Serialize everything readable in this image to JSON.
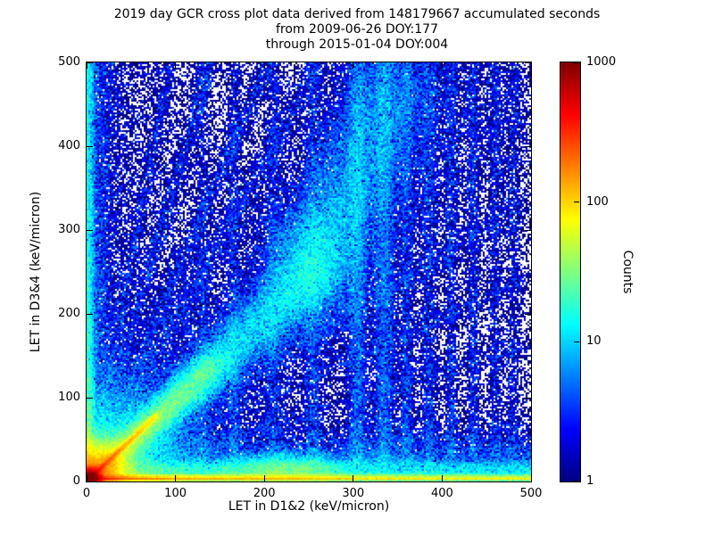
{
  "chart_data": {
    "type": "heatmap",
    "title_lines": [
      "2019 day GCR cross plot data derived from 148179667 accumulated seconds",
      "from 2009-06-26 DOY:177",
      "through 2015-01-04 DOY:004"
    ],
    "xlabel": "LET in D1&2 (keV/micron)",
    "ylabel": "LET in D3&4 (keV/micron)",
    "xlim": [
      0,
      500
    ],
    "ylim": [
      0,
      500
    ],
    "x_ticks": [
      0,
      100,
      200,
      300,
      400,
      500
    ],
    "y_ticks": [
      0,
      100,
      200,
      300,
      400,
      500
    ],
    "grid": false,
    "colors": {
      "background": "#ffffff",
      "frame": "#000000",
      "single_count_point": "#000080"
    },
    "colorbar": {
      "label": "Counts",
      "scale": "log",
      "min": 1,
      "max": 1000,
      "ticks": [
        1,
        10,
        100,
        1000
      ],
      "colormap": "jet",
      "jet_stops": [
        "#000080 0%",
        "#0000ff 12.5%",
        "#00ffff 37.5%",
        "#7fff7f 50%",
        "#ffff00 62.5%",
        "#ff0000 87.5%",
        "#7f0000 100%"
      ]
    },
    "density_features": [
      {
        "name": "origin-core",
        "kind": "blob",
        "x": 4,
        "y": 4,
        "sx": 6,
        "sy": 6,
        "samples": 60000
      },
      {
        "name": "origin-glow",
        "kind": "blob",
        "x": 12,
        "y": 12,
        "sx": 18,
        "sy": 18,
        "samples": 50000
      },
      {
        "name": "origin-halo",
        "kind": "blob",
        "x": 25,
        "y": 25,
        "sx": 45,
        "sy": 45,
        "samples": 30000
      },
      {
        "name": "bright-identity-streak",
        "kind": "line",
        "x0": 0,
        "y0": 0,
        "x1": 80,
        "y1": 80,
        "s0": 1.2,
        "s1": 2.5,
        "taper": 1.6,
        "samples": 14000
      },
      {
        "name": "diagonal-inner",
        "kind": "line",
        "x0": 0,
        "y0": 0,
        "x1": 150,
        "y1": 145,
        "s0": 5,
        "s1": 12,
        "taper": 1.3,
        "samples": 22000
      },
      {
        "name": "diagonal-main",
        "kind": "line",
        "x0": 0,
        "y0": 0,
        "x1": 265,
        "y1": 255,
        "s0": 10,
        "s1": 22,
        "samples": 35000
      },
      {
        "name": "diagonal-upper-bend",
        "kind": "line",
        "x0": 245,
        "y0": 240,
        "x1": 355,
        "y1": 500,
        "s0": 22,
        "s1": 34,
        "samples": 28000
      },
      {
        "name": "diagonal-mid-blob",
        "kind": "blob",
        "x": 255,
        "y": 255,
        "sx": 35,
        "sy": 45,
        "samples": 10000
      },
      {
        "name": "diagonal-diffuse",
        "kind": "line",
        "x0": 0,
        "y0": 0,
        "x1": 500,
        "y1": 490,
        "s0": 30,
        "s1": 60,
        "samples": 20000
      },
      {
        "name": "bottom-hot-band",
        "kind": "hline",
        "y": 1.5,
        "x0": 0,
        "x1": 500,
        "spread": 3,
        "taper": 1.6,
        "samples": 65000
      },
      {
        "name": "bottom-mid-band",
        "kind": "hline",
        "y": 6,
        "x0": 0,
        "x1": 500,
        "spread": 9,
        "taper": 1.3,
        "samples": 25000
      },
      {
        "name": "bottom-diffuse-band",
        "kind": "hline",
        "y": 15,
        "x0": 0,
        "x1": 500,
        "spread": 25,
        "taper": 1.2,
        "samples": 15000
      },
      {
        "name": "bottom-bump",
        "kind": "blob",
        "x": 225,
        "y": 12,
        "sx": 38,
        "sy": 11,
        "samples": 12000
      },
      {
        "name": "left-edge-column",
        "kind": "vline",
        "x": 2.5,
        "y0": 0,
        "y1": 500,
        "spread": 3.5,
        "taper": 1.8,
        "samples": 14000
      },
      {
        "name": "left-diffuse-column",
        "kind": "vline",
        "x": 10,
        "y0": 0,
        "y1": 500,
        "spread": 12,
        "taper": 1.5,
        "samples": 9000
      },
      {
        "name": "radial-streak-1",
        "kind": "line",
        "x0": 0,
        "y0": 0,
        "x1": 95,
        "y1": 500,
        "s0": 4,
        "s1": 4,
        "samples": 1800
      },
      {
        "name": "radial-streak-2",
        "kind": "line",
        "x0": 0,
        "y0": 0,
        "x1": 140,
        "y1": 500,
        "s0": 5,
        "s1": 5,
        "samples": 2600
      },
      {
        "name": "radial-streak-3",
        "kind": "line",
        "x0": 0,
        "y0": 0,
        "x1": 205,
        "y1": 500,
        "s0": 6,
        "s1": 6,
        "samples": 3200
      },
      {
        "name": "radial-streak-4",
        "kind": "line",
        "x0": 0,
        "y0": 0,
        "x1": 262,
        "y1": 500,
        "s0": 8,
        "s1": 8,
        "samples": 3800
      },
      {
        "name": "radial-streak-low-1",
        "kind": "line",
        "x0": 0,
        "y0": 0,
        "x1": 500,
        "y1": 335,
        "s0": 8,
        "s1": 8,
        "samples": 2800
      },
      {
        "name": "radial-streak-low-2",
        "kind": "line",
        "x0": 0,
        "y0": 0,
        "x1": 500,
        "y1": 245,
        "s0": 7,
        "s1": 7,
        "samples": 2200
      },
      {
        "name": "radial-streak-low-3",
        "kind": "line",
        "x0": 0,
        "y0": 0,
        "x1": 500,
        "y1": 165,
        "s0": 6,
        "s1": 6,
        "samples": 1600
      },
      {
        "name": "vertical-band-130",
        "kind": "vline",
        "x": 130,
        "y0": 20,
        "y1": 500,
        "spread": 4,
        "taper": 1.2,
        "samples": 1500
      },
      {
        "name": "vertical-band-165",
        "kind": "vline",
        "x": 165,
        "y0": 20,
        "y1": 500,
        "spread": 4,
        "taper": 1.2,
        "samples": 1800
      },
      {
        "name": "vertical-band-210",
        "kind": "vline",
        "x": 210,
        "y0": 20,
        "y1": 500,
        "spread": 5,
        "taper": 1.2,
        "samples": 2400
      },
      {
        "name": "vertical-band-255",
        "kind": "vline",
        "x": 255,
        "y0": 20,
        "y1": 500,
        "spread": 5,
        "taper": 1.2,
        "samples": 2600
      },
      {
        "name": "vertical-band-305",
        "kind": "vline",
        "x": 305,
        "y0": 20,
        "y1": 500,
        "spread": 6,
        "taper": 1.1,
        "samples": 6500
      },
      {
        "name": "vertical-band-335",
        "kind": "vline",
        "x": 335,
        "y0": 20,
        "y1": 500,
        "spread": 7,
        "taper": 1.1,
        "samples": 7500
      },
      {
        "name": "vertical-band-360",
        "kind": "vline",
        "x": 360,
        "y0": 20,
        "y1": 500,
        "spread": 5,
        "taper": 1.2,
        "samples": 3200
      },
      {
        "name": "vertical-band-385",
        "kind": "vline",
        "x": 385,
        "y0": 20,
        "y1": 500,
        "spread": 5,
        "taper": 1.2,
        "samples": 2800
      },
      {
        "name": "vertical-band-410",
        "kind": "vline",
        "x": 410,
        "y0": 30,
        "y1": 500,
        "spread": 4,
        "taper": 1.2,
        "samples": 2000
      },
      {
        "name": "vertical-band-435",
        "kind": "vline",
        "x": 435,
        "y0": 30,
        "y1": 500,
        "spread": 4,
        "taper": 1.2,
        "samples": 1900
      },
      {
        "name": "vertical-band-460",
        "kind": "vline",
        "x": 460,
        "y0": 30,
        "y1": 500,
        "spread": 4,
        "taper": 1.2,
        "samples": 1600
      },
      {
        "name": "vertical-band-480",
        "kind": "vline",
        "x": 480,
        "y0": 30,
        "y1": 500,
        "spread": 4,
        "taper": 1.2,
        "samples": 1400
      },
      {
        "name": "background-lowleft-bias",
        "kind": "scatter",
        "bx": 1.5,
        "by": 1.2,
        "samples": 26000
      },
      {
        "name": "background-uniform",
        "kind": "scatter",
        "bx": 1,
        "by": 1,
        "samples": 14000
      },
      {
        "name": "background-left-haze",
        "kind": "scatter",
        "bx": 2.2,
        "by": 0.9,
        "samples": 10000
      }
    ]
  }
}
